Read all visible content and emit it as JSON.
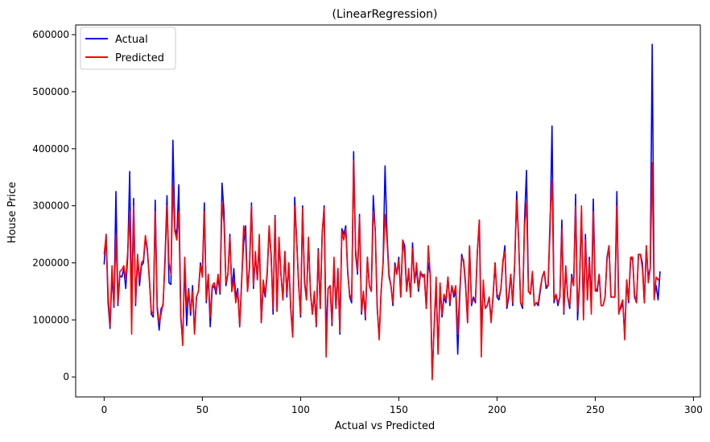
{
  "chart_data": {
    "type": "line",
    "title": "(LinearRegression)",
    "xlabel": "Actual vs Predicted",
    "ylabel": "House Price",
    "xlim": [
      -14.5,
      303.5
    ],
    "ylim": [
      -35000,
      617000
    ],
    "xticks": [
      "0",
      "50",
      "100",
      "150",
      "200",
      "250",
      "300"
    ],
    "yticks": [
      "0",
      "100000",
      "200000",
      "300000",
      "400000",
      "500000",
      "600000"
    ],
    "grid": false,
    "legend": "top-left",
    "colors": {
      "actual": "#0000ff",
      "predicted": "#ff0000"
    },
    "series": [
      {
        "name": "Actual",
        "color": "#0000ff",
        "values": [
          197000,
          250000,
          130000,
          85000,
          180000,
          122000,
          325000,
          125000,
          178000,
          175000,
          190000,
          155000,
          210000,
          360000,
          120000,
          313000,
          125000,
          210000,
          160000,
          195000,
          200000,
          245000,
          220000,
          175000,
          110000,
          105000,
          310000,
          120000,
          82000,
          120000,
          125000,
          210000,
          318000,
          165000,
          162000,
          415000,
          260000,
          250000,
          337000,
          105000,
          60000,
          200000,
          90000,
          155000,
          108000,
          160000,
          78000,
          140000,
          150000,
          200000,
          180000,
          305000,
          130000,
          180000,
          88000,
          155000,
          160000,
          145000,
          175000,
          145000,
          340000,
          290000,
          160000,
          180000,
          250000,
          150000,
          190000,
          140000,
          155000,
          88000,
          170000,
          235000,
          265000,
          150000,
          195000,
          305000,
          155000,
          215000,
          170000,
          235000,
          95000,
          160000,
          140000,
          180000,
          260000,
          215000,
          110000,
          283000,
          115000,
          240000,
          180000,
          135000,
          220000,
          140000,
          200000,
          118000,
          70000,
          315000,
          240000,
          165000,
          105000,
          300000,
          165000,
          135000,
          240000,
          150000,
          110000,
          145000,
          88000,
          225000,
          120000,
          250000,
          300000,
          70000,
          155000,
          160000,
          90000,
          200000,
          120000,
          190000,
          75000,
          260000,
          250000,
          265000,
          185000,
          140000,
          130000,
          395000,
          215000,
          180000,
          285000,
          110000,
          150000,
          100000,
          210000,
          160000,
          150000,
          318000,
          255000,
          120000,
          70000,
          150000,
          200000,
          370000,
          250000,
          180000,
          160000,
          125000,
          200000,
          180000,
          210000,
          140000,
          240000,
          230000,
          150000,
          185000,
          140000,
          235000,
          165000,
          190000,
          150000,
          180000,
          180000,
          175000,
          120000,
          200000,
          180000,
          0,
          90000,
          160000,
          40000,
          160000,
          105000,
          140000,
          130000,
          175000,
          125000,
          160000,
          140000,
          150000,
          40000,
          140000,
          215000,
          200000,
          160000,
          95000,
          230000,
          125000,
          140000,
          130000,
          220000,
          275000,
          80000,
          160000,
          120000,
          125000,
          140000,
          100000,
          140000,
          200000,
          140000,
          135000,
          155000,
          200000,
          230000,
          120000,
          140000,
          180000,
          125000,
          200000,
          325000,
          240000,
          130000,
          120000,
          275000,
          362000,
          150000,
          145000,
          180000,
          125000,
          130000,
          125000,
          150000,
          175000,
          185000,
          155000,
          160000,
          260000,
          440000,
          130000,
          145000,
          125000,
          140000,
          275000,
          110000,
          190000,
          140000,
          120000,
          180000,
          160000,
          320000,
          100000,
          160000,
          290000,
          105000,
          250000,
          135000,
          210000,
          125000,
          312000,
          155000,
          150000,
          180000,
          125000,
          125000,
          140000,
          210000,
          230000,
          140000,
          140000,
          140000,
          325000,
          115000,
          120000,
          130000,
          75000,
          170000,
          130000,
          205000,
          210000,
          140000,
          130000,
          215000,
          215000,
          200000,
          130000,
          230000,
          175000,
          190000,
          583000,
          140000,
          160000,
          135000,
          185000
        ]
      },
      {
        "name": "Predicted",
        "color": "#ff0000",
        "values": [
          215000,
          248000,
          145000,
          90000,
          195000,
          125000,
          250000,
          130000,
          185000,
          188000,
          195000,
          170000,
          220000,
          290000,
          75000,
          300000,
          130000,
          215000,
          170000,
          200000,
          205000,
          248000,
          225000,
          170000,
          115000,
          110000,
          290000,
          125000,
          95000,
          110000,
          130000,
          200000,
          300000,
          200000,
          180000,
          335000,
          255000,
          240000,
          290000,
          110000,
          55000,
          210000,
          125000,
          150000,
          115000,
          150000,
          75000,
          140000,
          150000,
          195000,
          175000,
          290000,
          135000,
          180000,
          105000,
          160000,
          165000,
          150000,
          180000,
          150000,
          305000,
          270000,
          165000,
          180000,
          245000,
          150000,
          170000,
          130000,
          150000,
          90000,
          165000,
          265000,
          240000,
          150000,
          190000,
          300000,
          160000,
          220000,
          170000,
          250000,
          95000,
          170000,
          145000,
          185000,
          265000,
          210000,
          120000,
          280000,
          115000,
          245000,
          180000,
          135000,
          220000,
          145000,
          200000,
          120000,
          70000,
          300000,
          240000,
          160000,
          110000,
          295000,
          170000,
          135000,
          245000,
          150000,
          110000,
          150000,
          90000,
          220000,
          120000,
          255000,
          295000,
          35000,
          155000,
          160000,
          95000,
          210000,
          120000,
          190000,
          80000,
          255000,
          240000,
          260000,
          180000,
          145000,
          135000,
          380000,
          225000,
          185000,
          280000,
          115000,
          150000,
          105000,
          210000,
          160000,
          150000,
          290000,
          260000,
          125000,
          65000,
          150000,
          200000,
          285000,
          240000,
          175000,
          160000,
          130000,
          195000,
          180000,
          205000,
          140000,
          240000,
          215000,
          150000,
          190000,
          140000,
          225000,
          165000,
          200000,
          155000,
          185000,
          175000,
          180000,
          120000,
          230000,
          180000,
          -5000,
          90000,
          175000,
          40000,
          165000,
          110000,
          145000,
          135000,
          175000,
          130000,
          160000,
          145000,
          160000,
          75000,
          150000,
          210000,
          205000,
          165000,
          95000,
          230000,
          130000,
          135000,
          135000,
          220000,
          275000,
          35000,
          170000,
          120000,
          125000,
          140000,
          95000,
          145000,
          200000,
          145000,
          140000,
          155000,
          205000,
          220000,
          125000,
          145000,
          180000,
          130000,
          200000,
          310000,
          240000,
          130000,
          125000,
          265000,
          305000,
          150000,
          145000,
          185000,
          125000,
          130000,
          130000,
          155000,
          175000,
          185000,
          160000,
          160000,
          280000,
          345000,
          135000,
          145000,
          130000,
          140000,
          260000,
          115000,
          195000,
          140000,
          125000,
          175000,
          160000,
          300000,
          115000,
          165000,
          300000,
          100000,
          240000,
          135000,
          205000,
          110000,
          290000,
          150000,
          155000,
          180000,
          125000,
          125000,
          140000,
          205000,
          230000,
          140000,
          140000,
          140000,
          300000,
          110000,
          125000,
          135000,
          65000,
          170000,
          135000,
          210000,
          210000,
          145000,
          130000,
          215000,
          215000,
          190000,
          130000,
          230000,
          165000,
          190000,
          375000,
          135000,
          175000,
          170000,
          175000
        ]
      }
    ]
  }
}
